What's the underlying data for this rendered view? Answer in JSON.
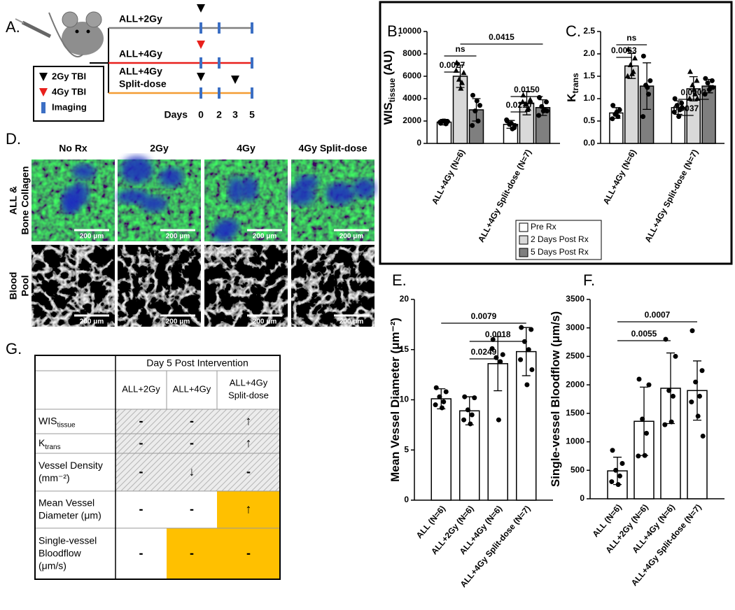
{
  "panel_a": {
    "label": "A.",
    "arms": [
      [
        "ALL+2Gy"
      ],
      [
        "ALL+4Gy"
      ],
      [
        "ALL+4Gy",
        "Split-dose"
      ]
    ],
    "legend": [
      "2Gy TBI",
      "4Gy TBI",
      "Imaging"
    ],
    "days_label": "Days",
    "days": [
      "0",
      "2",
      "3",
      "5"
    ]
  },
  "chart_data": [
    {
      "type": "bar",
      "label": "B.",
      "y_label": "WIS",
      "y_label_sub": "tissue",
      "y_label_unit": "(AU)",
      "categories": [
        "ALL+4Gy (N=6)",
        "ALL+4Gy Split-dose (N=7)"
      ],
      "series": [
        {
          "name": "Pre Rx",
          "color": "#ffffff",
          "marker": "circle",
          "values": [
            1900,
            1700
          ],
          "errors": [
            250,
            350
          ],
          "points": [
            [
              1800,
              1950,
              2000,
              1750,
              1900,
              2000
            ],
            [
              2000,
              1400,
              1700,
              1300,
              2100,
              1800,
              1600
            ]
          ]
        },
        {
          "name": "2 Days Post Rx",
          "color": "#d9d9d9",
          "marker": "triangle",
          "values": [
            6000,
            3600
          ],
          "errors": [
            1000,
            1050
          ],
          "points": [
            [
              7200,
              6300,
              5700,
              5400,
              6500,
              4900
            ],
            [
              4300,
              3900,
              3500,
              3100,
              3700,
              3000,
              3700
            ]
          ]
        },
        {
          "name": "5 Days Post Rx",
          "color": "#7f7f7f",
          "marker": "circle",
          "values": [
            3000,
            3200
          ],
          "errors": [
            1000,
            700
          ],
          "points": [
            [
              4300,
              3400,
              2900,
              2000,
              1600,
              3800
            ],
            [
              4100,
              3700,
              3300,
              3000,
              2500,
              2900,
              2900
            ]
          ]
        }
      ],
      "ylim": [
        0,
        10000
      ],
      "yticks": [
        0,
        2000,
        4000,
        6000,
        8000,
        10000
      ],
      "legend": "bottom",
      "annotations": [
        "0.0027",
        "ns",
        "0.0415",
        "0.0210",
        "0.0150"
      ]
    },
    {
      "type": "bar",
      "label": "C.",
      "y_label": "K",
      "y_label_sub": "trans",
      "categories": [
        "ALL+4Gy (N=6)",
        "ALL+4Gy Split-dose (N=7)"
      ],
      "series": [
        {
          "name": "Pre Rx",
          "color": "#ffffff",
          "marker": "circle",
          "values": [
            0.68,
            0.8
          ],
          "errors": [
            0.12,
            0.15
          ],
          "points": [
            [
              0.85,
              0.75,
              0.65,
              0.6,
              0.55,
              0.7
            ],
            [
              1.0,
              0.9,
              0.85,
              0.75,
              0.7,
              0.6,
              0.8
            ]
          ]
        },
        {
          "name": "2 Days Post Rx",
          "color": "#d9d9d9",
          "marker": "triangle",
          "values": [
            1.73,
            1.22
          ],
          "errors": [
            0.28,
            0.27
          ],
          "points": [
            [
              2.1,
              1.9,
              1.75,
              1.6,
              1.5,
              1.55
            ],
            [
              1.6,
              1.4,
              1.3,
              1.1,
              1.0,
              1.2,
              1.0
            ]
          ]
        },
        {
          "name": "5 Days Post Rx",
          "color": "#7f7f7f",
          "marker": "circle",
          "values": [
            1.28,
            1.28
          ],
          "errors": [
            0.52,
            0.15
          ],
          "points": [
            [
              1.95,
              1.4,
              1.3,
              1.1,
              0.6,
              1.25
            ],
            [
              1.45,
              1.4,
              1.35,
              1.25,
              1.1,
              1.2,
              1.25
            ]
          ]
        }
      ],
      "ylim": [
        0,
        2.5
      ],
      "yticks": [
        {
          "value": 0,
          "label": "0.0"
        },
        0.5,
        {
          "value": 1,
          "label": "1.0"
        },
        1.5,
        {
          "value": 2,
          "label": "2.0"
        },
        2.5
      ],
      "annotations": [
        "0.0063",
        "ns",
        "0.0037",
        "0.0003"
      ]
    },
    {
      "type": "bar",
      "label": "E.",
      "y_label": "Mean Vessel Diameter (μm⁻²)",
      "categories": [
        "ALL (N=6)",
        "ALL+2Gy (N=6)",
        "ALL+4Gy (N=6)",
        "ALL+4Gy Split-dose (N=7)"
      ],
      "color": "#ffffff",
      "marker": "circle",
      "values": [
        10.1,
        8.9,
        13.6,
        14.8
      ],
      "errors": [
        1.0,
        1.4,
        2.7,
        2.4
      ],
      "points": [
        [
          11.2,
          10.8,
          10.3,
          9.8,
          9.5,
          9.2
        ],
        [
          10.3,
          10.2,
          9.0,
          8.5,
          8.0,
          7.6
        ],
        [
          16.0,
          14.5,
          14.2,
          13.8,
          15.1,
          8.0
        ],
        [
          17.2,
          17.0,
          15.8,
          15.0,
          14.0,
          11.5,
          13.0
        ]
      ],
      "ylim": [
        0,
        20
      ],
      "yticks": [
        0,
        5,
        10,
        15,
        20
      ],
      "annotations": [
        "0.0079",
        "0.0018",
        "0.0249"
      ]
    },
    {
      "type": "bar",
      "label": "F.",
      "y_label": "Single-vessel Bloodflow (μm/s)",
      "categories": [
        "ALL (N=6)",
        "ALL+2Gy (N=6)",
        "ALL+4Gy (N=6)",
        "ALL+4Gy Split-dose (N=7)"
      ],
      "color": "#ffffff",
      "marker": "circle",
      "values": [
        490,
        1360,
        1940,
        1900
      ],
      "errors": [
        240,
        600,
        620,
        520
      ],
      "points": [
        [
          850,
          620,
          500,
          400,
          300,
          250
        ],
        [
          2100,
          2000,
          1400,
          1150,
          750,
          760
        ],
        [
          2800,
          2500,
          1900,
          1800,
          1300,
          1350
        ],
        [
          2950,
          2250,
          2050,
          1800,
          1700,
          1450,
          1100
        ]
      ],
      "ylim": [
        0,
        3500
      ],
      "yticks": [
        0,
        500,
        1000,
        1500,
        2000,
        2500,
        3000,
        3500
      ],
      "annotations": [
        "0.0007",
        "0.0055"
      ]
    }
  ],
  "panel_d": {
    "label": "D.",
    "columns": [
      "No Rx",
      "2Gy",
      "4Gy",
      "4Gy Split-dose"
    ],
    "rows": [
      [
        "ALL &",
        "Bone Collagen"
      ],
      [
        "Blood",
        "Pool"
      ]
    ],
    "scale_bar": "200 μm"
  },
  "panel_g": {
    "label": "G.",
    "header": "Day 5 Post Intervention",
    "columns": [
      [
        "ALL+2Gy"
      ],
      [
        "ALL+4Gy"
      ],
      [
        "ALL+4Gy",
        "Split-dose"
      ]
    ],
    "rows": [
      {
        "label": [
          "WIS"
        ],
        "sub": "tissue",
        "cells": [
          "-",
          "-",
          "↑"
        ]
      },
      {
        "label": [
          "K"
        ],
        "sub": "trans",
        "cells": [
          "-",
          "-",
          "↑"
        ]
      },
      {
        "label": [
          "Vessel Density",
          "(mm⁻²)"
        ],
        "cells": [
          "-",
          "↓",
          "-"
        ]
      },
      {
        "label": [
          "Mean Vessel",
          "Diameter (μm)"
        ],
        "cells": [
          "-",
          "-",
          "↑"
        ]
      },
      {
        "label": [
          "Single-vessel",
          "Bloodflow",
          "(μm/s)"
        ],
        "cells": [
          "-",
          "-",
          "-"
        ]
      }
    ]
  }
}
